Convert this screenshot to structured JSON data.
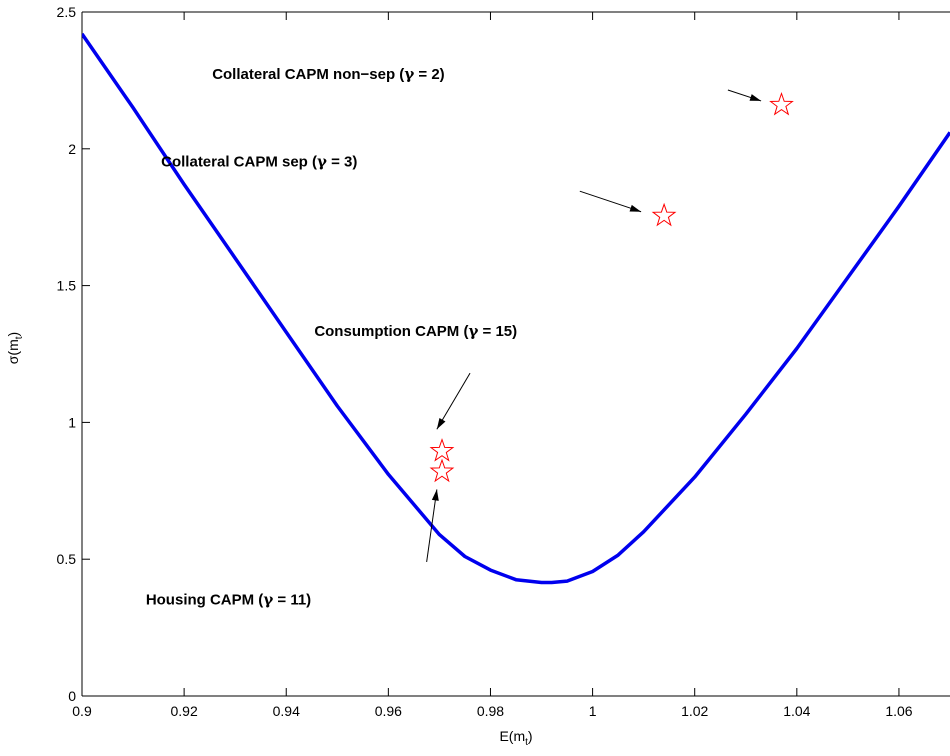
{
  "chart_data": {
    "type": "line",
    "title": "",
    "xlabel": "E(m",
    "xlabel_sub": "t",
    "xlabel_close": ")",
    "ylabel": "σ(m",
    "ylabel_sub": "t",
    "ylabel_close": ")",
    "xlim": [
      0.9,
      1.07
    ],
    "ylim": [
      0,
      2.5
    ],
    "x_ticks": [
      "0.9",
      "0.92",
      "0.94",
      "0.96",
      "0.98",
      "1",
      "1.02",
      "1.04",
      "1.06"
    ],
    "y_ticks": [
      "0",
      "0.5",
      "1",
      "1.5",
      "2",
      "2.5"
    ],
    "grid": false,
    "colors": {
      "frontier": "#0000ee",
      "stars": "#ff0000",
      "arrows": "#000000"
    },
    "series": [
      {
        "x": [
          0.9,
          0.91,
          0.92,
          0.93,
          0.94,
          0.95,
          0.96,
          0.965,
          0.97,
          0.975,
          0.98,
          0.985,
          0.99,
          0.992,
          0.995,
          1.0,
          1.005,
          1.01,
          1.02,
          1.03,
          1.04,
          1.05,
          1.06,
          1.07
        ],
        "y": [
          2.42,
          2.15,
          1.87,
          1.6,
          1.33,
          1.06,
          0.81,
          0.7,
          0.59,
          0.51,
          0.46,
          0.425,
          0.415,
          0.415,
          0.42,
          0.455,
          0.515,
          0.6,
          0.8,
          1.03,
          1.27,
          1.53,
          1.79,
          2.06
        ]
      }
    ],
    "points": [
      {
        "x": 1.037,
        "y": 2.16
      },
      {
        "x": 1.014,
        "y": 1.755
      },
      {
        "x": 0.9705,
        "y": 0.895
      },
      {
        "x": 0.9705,
        "y": 0.82
      }
    ],
    "annotations": [
      {
        "label": "Collateral CAPM non−sep (",
        "symbol": "γ",
        "rest": " = 2)",
        "x": 0.9255,
        "y": 2.255,
        "arrow_from": [
          1.0265,
          2.215
        ],
        "arrow_to": [
          1.033,
          2.175
        ]
      },
      {
        "label": "Collateral CAPM sep (",
        "symbol": "γ",
        "rest": " = 3)",
        "x": 0.9155,
        "y": 1.935,
        "arrow_from": [
          0.9975,
          1.845
        ],
        "arrow_to": [
          1.0095,
          1.77
        ]
      },
      {
        "label": "Consumption CAPM (",
        "symbol": "γ",
        "rest": " = 15)",
        "x": 0.9455,
        "y": 1.315,
        "arrow_from": [
          0.976,
          1.18
        ],
        "arrow_to": [
          0.9695,
          0.975
        ]
      },
      {
        "label": "Housing CAPM (",
        "symbol": "γ",
        "rest": " = 11)",
        "x": 0.9125,
        "y": 0.335,
        "arrow_from": [
          0.9675,
          0.49
        ],
        "arrow_to": [
          0.9695,
          0.755
        ]
      }
    ]
  }
}
